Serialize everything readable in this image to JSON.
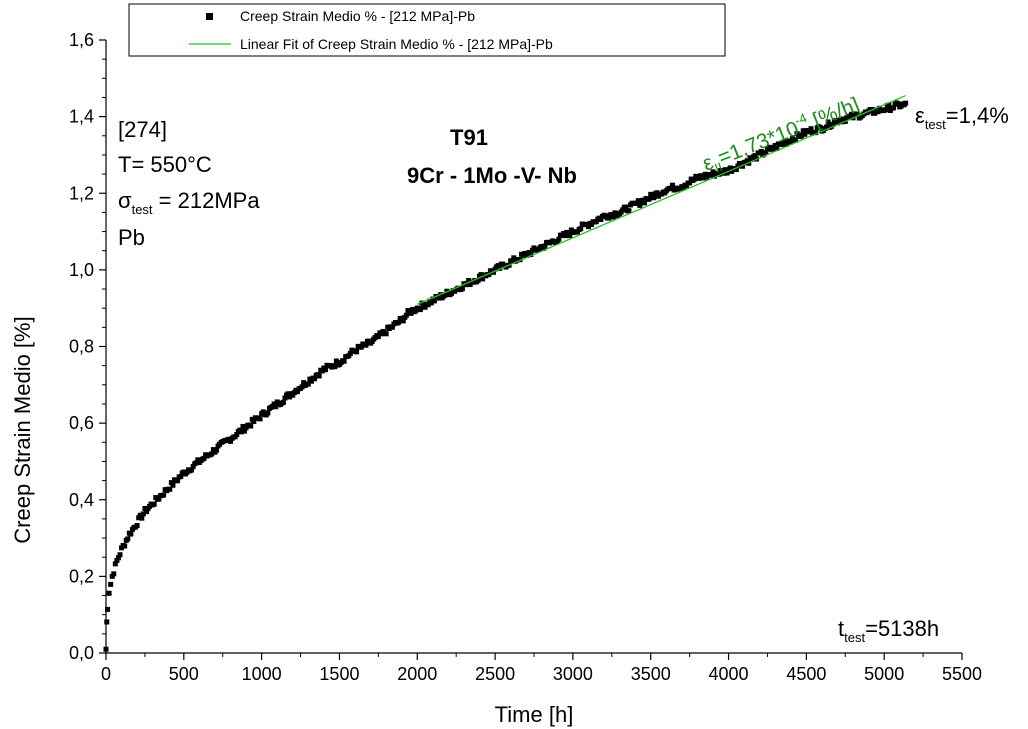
{
  "chart_data": {
    "type": "scatter",
    "title": "T91",
    "subtitle": "9Cr - 1Mo -V- Nb",
    "xlabel": "Time [h]",
    "ylabel": "Creep Strain Medio [%]",
    "xlim": [
      0,
      5500
    ],
    "ylim": [
      0,
      1.6
    ],
    "x_ticks": [
      0,
      500,
      1000,
      1500,
      2000,
      2500,
      3000,
      3500,
      4000,
      4500,
      5000,
      5500
    ],
    "x_tick_labels": [
      "0",
      "500",
      "1000",
      "1500",
      "2000",
      "2500",
      "3000",
      "3500",
      "4000",
      "4500",
      "5000",
      "5500"
    ],
    "y_ticks": [
      0,
      0.2,
      0.4,
      0.6,
      0.8,
      1.0,
      1.2,
      1.4,
      1.6
    ],
    "y_tick_labels": [
      "0,0",
      "0,2",
      "0,4",
      "0,6",
      "0,8",
      "1,0",
      "1,2",
      "1,4",
      "1,6"
    ],
    "grid": false,
    "legend_position": "top",
    "series": [
      {
        "name": "Creep Strain Medio %  - [212 MPa]-Pb",
        "marker": "square",
        "color": "#000000",
        "x": [
          0,
          5,
          10,
          20,
          40,
          70,
          100,
          150,
          200,
          250,
          300,
          400,
          500,
          600,
          700,
          800,
          900,
          1000,
          1100,
          1200,
          1300,
          1400,
          1500,
          1600,
          1700,
          1800,
          1900,
          1950,
          2000,
          2100,
          2200,
          2300,
          2400,
          2500,
          2600,
          2700,
          2800,
          2900,
          3000,
          3100,
          3200,
          3300,
          3400,
          3500,
          3600,
          3700,
          3800,
          3900,
          4000,
          4100,
          4200,
          4300,
          4400,
          4500,
          4600,
          4700,
          4800,
          4900,
          5000,
          5100,
          5138
        ],
        "y": [
          0.01,
          0.08,
          0.12,
          0.16,
          0.2,
          0.24,
          0.27,
          0.31,
          0.34,
          0.37,
          0.39,
          0.43,
          0.47,
          0.5,
          0.53,
          0.56,
          0.59,
          0.62,
          0.65,
          0.68,
          0.71,
          0.74,
          0.76,
          0.79,
          0.81,
          0.84,
          0.87,
          0.89,
          0.9,
          0.92,
          0.94,
          0.96,
          0.98,
          1.0,
          1.02,
          1.04,
          1.06,
          1.08,
          1.1,
          1.12,
          1.14,
          1.15,
          1.17,
          1.19,
          1.21,
          1.22,
          1.24,
          1.25,
          1.26,
          1.28,
          1.3,
          1.32,
          1.34,
          1.36,
          1.37,
          1.39,
          1.4,
          1.41,
          1.42,
          1.43,
          1.43
        ]
      },
      {
        "name": "Linear Fit of Creep Strain Medio %  - [212 MPa]-Pb",
        "type": "line",
        "color": "#22c022",
        "x": [
          2000,
          5138
        ],
        "y": [
          0.91,
          1.455
        ]
      }
    ],
    "annotations": {
      "ref": "[274]",
      "temperature": "T= 550°C",
      "sigma_symbol": "σ",
      "sigma_sub": "test",
      "sigma_value": " = 212MPa",
      "medium": "Pb",
      "eps_symbol": "ε",
      "eps_sub": "test",
      "eps_value": "=1,4%",
      "t_symbol": "t",
      "t_sub": "test",
      "t_value": "=5138h",
      "fit_eps_symbol": "ε",
      "fit_eps_sub": "II",
      "fit_value_prefix": "=1,73*10",
      "fit_exponent": "-4",
      "fit_unit": " [%/h]"
    }
  }
}
